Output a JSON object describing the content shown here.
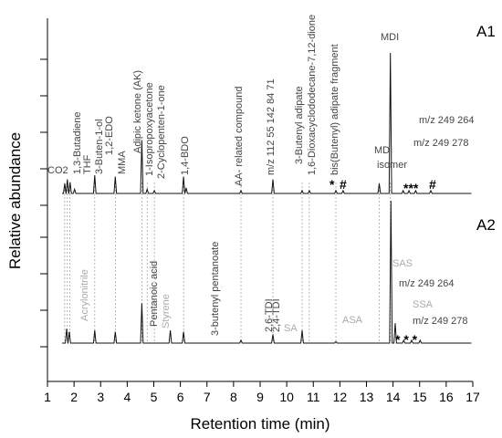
{
  "chart_data": {
    "type": "line",
    "xlabel": "Retention time (min)",
    "ylabel": "Relative abundance",
    "xlim": [
      1,
      17
    ],
    "x_ticks": [
      "1",
      "2",
      "3",
      "4",
      "5",
      "6",
      "7",
      "8",
      "9",
      "10",
      "11",
      "12",
      "13",
      "14",
      "15",
      "16",
      "17"
    ],
    "grid": false,
    "panels": [
      {
        "name": "A1",
        "peaks": [
          {
            "x": 1.65,
            "y": 7
          },
          {
            "x": 1.75,
            "y": 10
          },
          {
            "x": 1.85,
            "y": 8
          },
          {
            "x": 2.02,
            "y": 3
          },
          {
            "x": 2.78,
            "y": 13
          },
          {
            "x": 3.55,
            "y": 12
          },
          {
            "x": 4.55,
            "y": 38
          },
          {
            "x": 4.75,
            "y": 3
          },
          {
            "x": 5.02,
            "y": 2
          },
          {
            "x": 6.12,
            "y": 12
          },
          {
            "x": 6.22,
            "y": 4
          },
          {
            "x": 8.28,
            "y": 2
          },
          {
            "x": 9.48,
            "y": 10
          },
          {
            "x": 10.58,
            "y": 2
          },
          {
            "x": 10.85,
            "y": 2
          },
          {
            "x": 11.85,
            "y": 2
          },
          {
            "x": 12.12,
            "y": 2
          },
          {
            "x": 13.48,
            "y": 7
          },
          {
            "x": 13.9,
            "y": 100
          },
          {
            "x": 14.38,
            "y": 2
          },
          {
            "x": 14.6,
            "y": 2
          },
          {
            "x": 14.85,
            "y": 2
          },
          {
            "x": 15.42,
            "y": 2
          }
        ],
        "labels": [
          {
            "text": "CO2",
            "color": "#444444"
          },
          {
            "text": "1,3-Butadiene",
            "color": "#444444"
          },
          {
            "text": "THF",
            "color": "#444444"
          },
          {
            "text": "3-Buten-1-ol",
            "color": "#444444"
          },
          {
            "text": "1,2-EDO",
            "color": "#444444"
          },
          {
            "text": "MMA",
            "color": "#444444"
          },
          {
            "text": "Adipic ketone (AK)",
            "color": "#444444"
          },
          {
            "text": "1-Isopropoxyacetone",
            "color": "#444444"
          },
          {
            "text": "2-Cyclopenten-1-one",
            "color": "#444444"
          },
          {
            "text": "1,4-BDO",
            "color": "#444444"
          },
          {
            "text": "AA- related compound",
            "color": "#444444"
          },
          {
            "text": "m/z 112 55 142 84 71",
            "color": "#444444"
          },
          {
            "text": "3-Butenyl adipate",
            "color": "#444444"
          },
          {
            "text": "1,6-Dioxacyclododecane-7,12-dione",
            "color": "#444444"
          },
          {
            "text": "bis(Butenyl) adipate fragment",
            "color": "#444444"
          },
          {
            "text": "MDI",
            "color": "#444444"
          },
          {
            "text": "isomer",
            "color": "#444444"
          },
          {
            "text": "MDI",
            "color": "#444444"
          },
          {
            "text": "m/z 249 264",
            "color": "#444444"
          },
          {
            "text": "m/z 249 278",
            "color": "#444444"
          },
          {
            "text": "*",
            "color": "#000000"
          },
          {
            "text": "#",
            "color": "#000000"
          },
          {
            "text": "***",
            "color": "#000000"
          },
          {
            "text": "#",
            "color": "#000000"
          }
        ]
      },
      {
        "name": "A2",
        "peaks": [
          {
            "x": 1.72,
            "y": 10
          },
          {
            "x": 1.82,
            "y": 8
          },
          {
            "x": 2.78,
            "y": 9
          },
          {
            "x": 3.55,
            "y": 8
          },
          {
            "x": 4.55,
            "y": 28
          },
          {
            "x": 5.62,
            "y": 9
          },
          {
            "x": 6.12,
            "y": 8
          },
          {
            "x": 8.28,
            "y": 2
          },
          {
            "x": 9.48,
            "y": 6
          },
          {
            "x": 10.58,
            "y": 9
          },
          {
            "x": 11.85,
            "y": 1
          },
          {
            "x": 13.92,
            "y": 100
          },
          {
            "x": 14.08,
            "y": 14
          },
          {
            "x": 14.4,
            "y": 2
          },
          {
            "x": 14.7,
            "y": 2
          },
          {
            "x": 15.02,
            "y": 2
          }
        ],
        "labels": [
          {
            "text": "Acrylonitrile",
            "color": "#aaaaaa"
          },
          {
            "text": "Pentanoic acid",
            "color": "#444444"
          },
          {
            "text": "Styrene",
            "color": "#aaaaaa"
          },
          {
            "text": "3-butenyl pentanoate",
            "color": "#444444"
          },
          {
            "text": "2,6-TDI",
            "color": "#444444"
          },
          {
            "text": "2,4-TDI",
            "color": "#444444"
          },
          {
            "text": "SA",
            "color": "#aaaaaa"
          },
          {
            "text": "ASA",
            "color": "#aaaaaa"
          },
          {
            "text": "SAS",
            "color": "#aaaaaa"
          },
          {
            "text": "m/z 249 264",
            "color": "#444444"
          },
          {
            "text": "SSA",
            "color": "#aaaaaa"
          },
          {
            "text": "m/z 249 278",
            "color": "#444444"
          },
          {
            "text": "* * *",
            "color": "#000000"
          }
        ]
      }
    ]
  }
}
